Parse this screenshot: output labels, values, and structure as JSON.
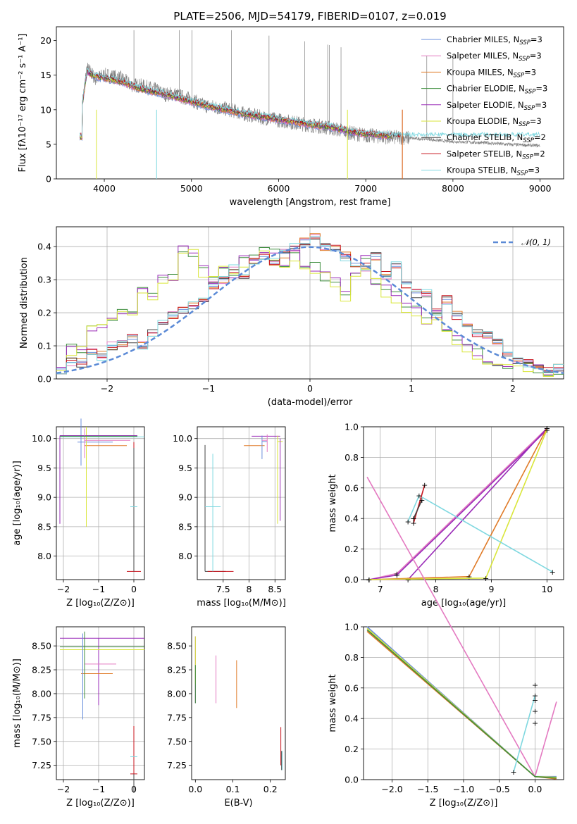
{
  "figure": {
    "title": "PLATE=2506, MJD=54179, FIBERID=0107, z=0.019"
  },
  "series": [
    {
      "name": "Chabrier MILES",
      "nssp": "3",
      "color": "#6a8fdc"
    },
    {
      "name": "Salpeter MILES",
      "nssp": "3",
      "color": "#e47ac1"
    },
    {
      "name": "Kroupa MILES",
      "nssp": "3",
      "color": "#e07b28"
    },
    {
      "name": "Chabrier ELODIE",
      "nssp": "3",
      "color": "#3e8e3e"
    },
    {
      "name": "Salpeter ELODIE",
      "nssp": "3",
      "color": "#9a2bb8"
    },
    {
      "name": "Kroupa ELODIE",
      "nssp": "3",
      "color": "#d9e63a"
    },
    {
      "name": "Chabrier STELIB",
      "nssp": "2",
      "color": "#444444"
    },
    {
      "name": "Salpeter STELIB",
      "nssp": "2",
      "color": "#c8141e"
    },
    {
      "name": "Kroupa STELIB",
      "nssp": "3",
      "color": "#7fd8e0"
    }
  ],
  "chart_data": [
    {
      "type": "line",
      "panel": "spectrum",
      "xlabel": "wavelength [Angstrom, rest frame]",
      "ylabel": "Flux [fλ10⁻¹⁷ erg cm⁻² s⁻¹ A⁻¹]",
      "xlim": [
        3450,
        9270
      ],
      "ylim": [
        0,
        22
      ],
      "xticks": [
        4000,
        5000,
        6000,
        7000,
        8000,
        9000
      ],
      "yticks": [
        0,
        5,
        10,
        15,
        20
      ],
      "grid": false,
      "legend": "top-right",
      "data_color": "#7f7f7f",
      "data_x": [
        3750,
        3800,
        3900,
        4000,
        4100,
        4200,
        4300,
        4400,
        4500,
        4600,
        4700,
        4800,
        4900,
        5000,
        5100,
        5200,
        5300,
        5400,
        5500,
        5600,
        5700,
        5800,
        5900,
        6000,
        6100,
        6200,
        6300,
        6400,
        6500,
        6600,
        6700,
        6800,
        6900,
        7000,
        7100,
        7200,
        7300,
        7400,
        7500,
        7600,
        7700,
        7800,
        7900,
        8000,
        8200,
        8400,
        8600,
        8800,
        9000
      ],
      "data_y": [
        11,
        16,
        14.5,
        15,
        14.8,
        14.5,
        13.6,
        13.5,
        13.2,
        12.8,
        12.2,
        12.3,
        11.8,
        11.5,
        10.8,
        10.5,
        10.3,
        10.1,
        9.8,
        9.4,
        9.2,
        8.9,
        8.7,
        8.5,
        8.3,
        8.1,
        7.9,
        7.7,
        7.6,
        7.3,
        7.1,
        6.7,
        6.5,
        6.3,
        6.2,
        6.1,
        6.0,
        6.0,
        5.9,
        5.8,
        5.8,
        5.6,
        5.5,
        5.4,
        5.3,
        5.2,
        5.0,
        4.9,
        4.8
      ],
      "model_x": [
        3750,
        3800,
        3900,
        4000,
        4200,
        4400,
        4600,
        4800,
        5000,
        5200,
        5400,
        5600,
        5800,
        6000,
        6200,
        6400,
        6600,
        6800,
        7000,
        7200,
        7400
      ],
      "model_y": [
        11,
        15.5,
        14.8,
        14.6,
        14.0,
        13.1,
        12.5,
        11.9,
        11.2,
        10.5,
        10.0,
        9.4,
        9.0,
        8.6,
        8.2,
        7.8,
        7.5,
        6.9,
        6.5,
        6.3,
        6.1
      ]
    },
    {
      "type": "line",
      "panel": "residual-histogram",
      "xlabel": "(data-model)/error",
      "ylabel": "Normed distribution",
      "xlim": [
        -2.5,
        2.5
      ],
      "ylim": [
        0,
        0.46
      ],
      "xticks": [
        -2,
        -1,
        0,
        1,
        2
      ],
      "yticks": [
        0.0,
        0.1,
        0.2,
        0.3,
        0.4
      ],
      "grid": true,
      "legend": "top-right",
      "gaussian_label": "𝒩(0, 1)",
      "gaussian_color": "#5b8ad6",
      "bins": [
        -2.5,
        -2.4,
        -2.3,
        -2.2,
        -2.1,
        -2.0,
        -1.9,
        -1.8,
        -1.7,
        -1.6,
        -1.5,
        -1.4,
        -1.3,
        -1.2,
        -1.1,
        -1.0,
        -0.9,
        -0.8,
        -0.7,
        -0.6,
        -0.5,
        -0.4,
        -0.3,
        -0.2,
        -0.1,
        0.0,
        0.1,
        0.2,
        0.3,
        0.4,
        0.5,
        0.6,
        0.7,
        0.8,
        0.9,
        1.0,
        1.1,
        1.2,
        1.3,
        1.4,
        1.5,
        1.6,
        1.7,
        1.8,
        1.9,
        2.0,
        2.1,
        2.2,
        2.3,
        2.4
      ],
      "hist_a": [
        0.05,
        0.1,
        0.09,
        0.15,
        0.16,
        0.18,
        0.2,
        0.2,
        0.27,
        0.25,
        0.3,
        0.31,
        0.39,
        0.38,
        0.33,
        0.3,
        0.34,
        0.32,
        0.36,
        0.37,
        0.39,
        0.38,
        0.35,
        0.38,
        0.33,
        0.34,
        0.31,
        0.3,
        0.26,
        0.33,
        0.36,
        0.3,
        0.28,
        0.25,
        0.22,
        0.22,
        0.17,
        0.2,
        0.15,
        0.12,
        0.1,
        0.08,
        0.05,
        0.04,
        0.03,
        0.05,
        0.04,
        0.03,
        0.02,
        0.02
      ],
      "hist_b": [
        0.03,
        0.05,
        0.05,
        0.08,
        0.07,
        0.1,
        0.11,
        0.12,
        0.1,
        0.14,
        0.17,
        0.19,
        0.21,
        0.22,
        0.24,
        0.28,
        0.3,
        0.33,
        0.31,
        0.36,
        0.37,
        0.35,
        0.38,
        0.4,
        0.42,
        0.43,
        0.4,
        0.39,
        0.37,
        0.35,
        0.34,
        0.37,
        0.31,
        0.34,
        0.29,
        0.26,
        0.26,
        0.2,
        0.24,
        0.19,
        0.16,
        0.14,
        0.13,
        0.11,
        0.08,
        0.06,
        0.05,
        0.04,
        0.02,
        0.03
      ],
      "hist_c": [
        0.04,
        0.08,
        0.09,
        0.15,
        0.15,
        0.17,
        0.19,
        0.2,
        0.26,
        0.25,
        0.3,
        0.3,
        0.38,
        0.38,
        0.32,
        0.31,
        0.34,
        0.31,
        0.35,
        0.36,
        0.38,
        0.37,
        0.34,
        0.37,
        0.32,
        0.33,
        0.31,
        0.29,
        0.25,
        0.32,
        0.34,
        0.29,
        0.26,
        0.24,
        0.21,
        0.2,
        0.16,
        0.19,
        0.14,
        0.11,
        0.08,
        0.06,
        0.04,
        0.04,
        0.03,
        0.04,
        0.03,
        0.03,
        0.02,
        0.02
      ]
    },
    {
      "type": "scatter",
      "panel": "age-vs-Z",
      "xlabel": "Z [log₁₀(Z/Z⊙)]",
      "ylabel": "age  [log₁₀(age/yr)]",
      "xlim": [
        -2.2,
        0.3
      ],
      "ylim": [
        7.6,
        10.2
      ],
      "xticks": [
        -2,
        -1,
        0
      ],
      "yticks": [
        8.0,
        8.5,
        9.0,
        9.5,
        10.0
      ],
      "grid": true
    },
    {
      "type": "scatter",
      "panel": "age-vs-mass",
      "xlabel": "mass [log₁₀(M/M⊙)]",
      "ylabel": "",
      "xlim": [
        7.0,
        8.7
      ],
      "ylim": [
        7.6,
        10.2
      ],
      "xticks": [
        7.5,
        8.0,
        8.5
      ],
      "yticks": [
        8.0,
        8.5,
        9.0,
        9.5,
        10.0
      ],
      "grid": true
    },
    {
      "type": "line",
      "panel": "massweight-vs-age",
      "xlabel": "age  [log₁₀(age/yr)]",
      "ylabel": "mass weight",
      "xlim": [
        6.7,
        10.3
      ],
      "ylim": [
        0,
        1.0
      ],
      "xticks": [
        7,
        8,
        9,
        10
      ],
      "yticks": [
        0.0,
        0.2,
        0.4,
        0.6,
        0.8,
        1.0
      ],
      "grid": true,
      "lines": [
        {
          "series": 1,
          "x": [
            6.8,
            7.3,
            10.0
          ],
          "y": [
            0.0,
            0.04,
            0.99
          ]
        },
        {
          "series": 4,
          "x": [
            6.8,
            7.3,
            10.0
          ],
          "y": [
            0.0,
            0.03,
            0.98
          ]
        },
        {
          "series": 4,
          "x": [
            6.8,
            7.5,
            10.0
          ],
          "y": [
            0.0,
            0.0,
            0.99
          ]
        },
        {
          "series": 2,
          "x": [
            6.8,
            8.6,
            10.0
          ],
          "y": [
            0.0,
            0.02,
            0.99
          ]
        },
        {
          "series": 5,
          "x": [
            6.8,
            8.9,
            10.0
          ],
          "y": [
            0.0,
            0.01,
            0.98
          ]
        },
        {
          "series": 8,
          "x": [
            7.5,
            7.7,
            10.1
          ],
          "y": [
            0.38,
            0.55,
            0.05
          ]
        },
        {
          "series": 7,
          "x": [
            7.6,
            7.8
          ],
          "y": [
            0.37,
            0.62
          ]
        },
        {
          "series": 6,
          "x": [
            7.6,
            7.75
          ],
          "y": [
            0.4,
            0.52
          ]
        }
      ]
    },
    {
      "type": "scatter",
      "panel": "mass-vs-Z",
      "xlabel": "Z [log₁₀(Z/Z⊙)]",
      "ylabel": "mass [log₁₀(M/M⊙)]",
      "xlim": [
        -2.2,
        0.3
      ],
      "ylim": [
        7.1,
        8.7
      ],
      "xticks": [
        -2,
        -1,
        0
      ],
      "yticks": [
        7.25,
        7.5,
        7.75,
        8.0,
        8.25,
        8.5
      ],
      "grid": true
    },
    {
      "type": "scatter",
      "panel": "mass-vs-EBV",
      "xlabel": "E(B-V)",
      "ylabel": "",
      "xlim": [
        -0.01,
        0.24
      ],
      "ylim": [
        7.1,
        8.7
      ],
      "xticks": [
        0.0,
        0.1,
        0.2
      ],
      "yticks": [
        7.25,
        7.5,
        7.75,
        8.0,
        8.25,
        8.5
      ],
      "grid": false
    },
    {
      "type": "line",
      "panel": "massweight-vs-Z",
      "xlabel": "Z [log₁₀(Z/Z⊙)]",
      "ylabel": "mass weight",
      "xlim": [
        -2.4,
        0.4
      ],
      "ylim": [
        0,
        1.0
      ],
      "xticks": [
        -2.0,
        -1.5,
        -1.0,
        -0.5,
        0.0
      ],
      "yticks": [
        0.0,
        0.2,
        0.4,
        0.6,
        0.8,
        1.0
      ],
      "grid": true
    }
  ]
}
